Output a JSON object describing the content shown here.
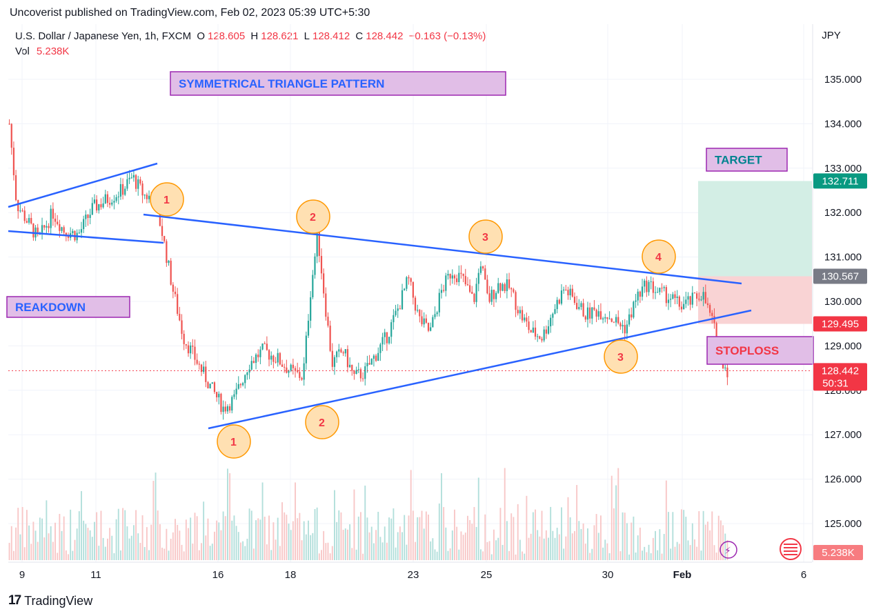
{
  "header": {
    "published": "Uncoverist published on TradingView.com, Feb 02, 2023 05:39 UTC+5:30"
  },
  "legend": {
    "symbol": "U.S. Dollar / Japanese Yen, 1h, FXCM",
    "open_label": "O",
    "open": "128.605",
    "high_label": "H",
    "high": "128.621",
    "low_label": "L",
    "low": "128.412",
    "close_label": "C",
    "close": "128.442",
    "change": "−0.163 (−0.13%)",
    "vol_label": "Vol",
    "vol": "5.238K"
  },
  "footer": {
    "brand": "TradingView",
    "logo_glyph": "17"
  },
  "colors": {
    "up": "#26a69a",
    "down": "#ef5350",
    "trendline": "#2962ff",
    "target_zone": "#d3eee5",
    "stop_zone": "#f9d3d4",
    "label_box": "#e1bee7",
    "marker_fill": "#ffe0b2",
    "marker_stroke": "#ff9800"
  },
  "chart_data": {
    "type": "candlestick",
    "currency": "JPY",
    "y_ticks": [
      "135.000",
      "134.000",
      "133.000",
      "132.000",
      "131.000",
      "130.000",
      "129.000",
      "128.000",
      "127.000",
      "126.000",
      "125.000"
    ],
    "x_ticks": [
      "9",
      "11",
      "16",
      "18",
      "23",
      "25",
      "30",
      "Feb",
      "6"
    ],
    "current_price": "128.442",
    "countdown": "50:31",
    "volume_label": "5.238K",
    "levels": {
      "target": "132.711",
      "entry": "130.567",
      "stop": "129.495"
    },
    "annotations": {
      "title": "SYMMETRICAL TRIANGLE PATTERN",
      "breakdown": "REAKDOWN",
      "target": "TARGET",
      "stoploss": "STOPLOSS"
    },
    "markers": [
      {
        "label": "1",
        "pos": "upper"
      },
      {
        "label": "2",
        "pos": "upper"
      },
      {
        "label": "3",
        "pos": "upper"
      },
      {
        "label": "4",
        "pos": "upper"
      },
      {
        "label": "1",
        "pos": "lower"
      },
      {
        "label": "2",
        "pos": "lower"
      },
      {
        "label": "3",
        "pos": "lower"
      }
    ],
    "price_path": [
      [
        0,
        134.0
      ],
      [
        2,
        132.2
      ],
      [
        5,
        131.8
      ],
      [
        8,
        131.4
      ],
      [
        12,
        132.0
      ],
      [
        15,
        131.6
      ],
      [
        19,
        131.5
      ],
      [
        23,
        132.1
      ],
      [
        27,
        132.3
      ],
      [
        31,
        132.5
      ],
      [
        34,
        132.8
      ],
      [
        37,
        132.4
      ],
      [
        40,
        132.3
      ],
      [
        42,
        131.6
      ],
      [
        45,
        130.3
      ],
      [
        48,
        129.2
      ],
      [
        52,
        128.6
      ],
      [
        56,
        128.0
      ],
      [
        59,
        127.6
      ],
      [
        62,
        127.8
      ],
      [
        66,
        128.6
      ],
      [
        70,
        128.9
      ],
      [
        74,
        128.7
      ],
      [
        78,
        128.4
      ],
      [
        81,
        128.3
      ],
      [
        83,
        130.2
      ],
      [
        85,
        131.5
      ],
      [
        87,
        130.0
      ],
      [
        89,
        128.6
      ],
      [
        92,
        128.9
      ],
      [
        95,
        128.3
      ],
      [
        98,
        128.4
      ],
      [
        101,
        128.8
      ],
      [
        104,
        129.2
      ],
      [
        107,
        129.8
      ],
      [
        110,
        130.5
      ],
      [
        113,
        129.6
      ],
      [
        116,
        129.3
      ],
      [
        119,
        130.2
      ],
      [
        122,
        130.7
      ],
      [
        125,
        130.5
      ],
      [
        128,
        130.0
      ],
      [
        130,
        130.9
      ],
      [
        132,
        130.0
      ],
      [
        135,
        130.4
      ],
      [
        138,
        130.3
      ],
      [
        141,
        129.7
      ],
      [
        144,
        129.3
      ],
      [
        147,
        129.2
      ],
      [
        150,
        129.8
      ],
      [
        153,
        130.3
      ],
      [
        156,
        130.0
      ],
      [
        159,
        129.7
      ],
      [
        162,
        129.8
      ],
      [
        165,
        129.7
      ],
      [
        168,
        129.5
      ],
      [
        170,
        129.4
      ],
      [
        173,
        130.1
      ],
      [
        176,
        130.4
      ],
      [
        179,
        130.2
      ],
      [
        182,
        130.1
      ],
      [
        185,
        129.9
      ],
      [
        188,
        130.0
      ],
      [
        191,
        130.2
      ],
      [
        194,
        129.5
      ],
      [
        196,
        128.8
      ],
      [
        198,
        128.442
      ]
    ],
    "xlim": [
      0,
      210
    ],
    "ylim": [
      124.2,
      135.8
    ]
  }
}
